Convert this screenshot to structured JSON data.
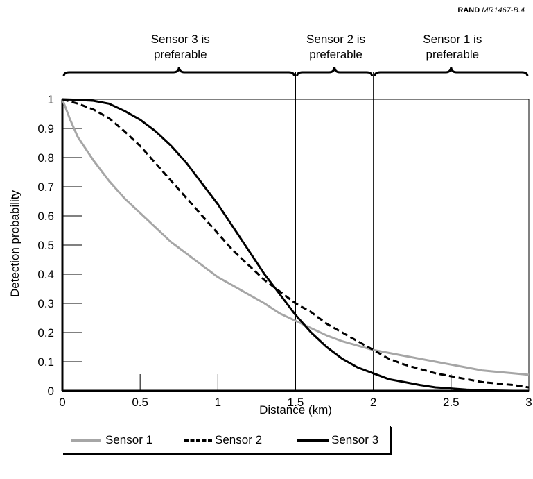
{
  "source": {
    "org": "RAND",
    "ref": "MR1467-B.4"
  },
  "chart_data": {
    "type": "line",
    "xlabel": "Distance (km)",
    "ylabel": "Detection probability",
    "xlim": [
      0,
      3
    ],
    "ylim": [
      0,
      1
    ],
    "xticks": [
      "0",
      "0.5",
      "1",
      "1.5",
      "2",
      "2.5",
      "3"
    ],
    "xtick_values": [
      0,
      0.5,
      1,
      1.5,
      2,
      2.5,
      3
    ],
    "yticks": [
      "0",
      "0.1",
      "0.2",
      "0.3",
      "0.4",
      "0.5",
      "0.6",
      "0.7",
      "0.8",
      "0.9",
      "1"
    ],
    "ytick_values": [
      0,
      0.1,
      0.2,
      0.3,
      0.4,
      0.5,
      0.6,
      0.7,
      0.8,
      0.9,
      1
    ],
    "grid": false,
    "legend_position": "bottom",
    "vertical_lines": [
      1.5,
      2.0
    ],
    "regions": [
      {
        "label_lines": [
          "Sensor 3 is",
          "preferable"
        ],
        "from": 0,
        "to": 1.5
      },
      {
        "label_lines": [
          "Sensor 2 is",
          "preferable"
        ],
        "from": 1.5,
        "to": 2.0
      },
      {
        "label_lines": [
          "Sensor 1 is",
          "preferable"
        ],
        "from": 2.0,
        "to": 3.0
      }
    ],
    "series": [
      {
        "name": "Sensor 1",
        "style": "solid",
        "color": "#a6a6a6",
        "x": [
          0,
          0.05,
          0.1,
          0.2,
          0.3,
          0.4,
          0.5,
          0.6,
          0.7,
          0.8,
          0.9,
          1.0,
          1.1,
          1.2,
          1.3,
          1.4,
          1.5,
          1.6,
          1.7,
          1.8,
          1.9,
          2.0,
          2.1,
          2.2,
          2.3,
          2.4,
          2.5,
          2.6,
          2.7,
          2.8,
          2.9,
          3.0
        ],
        "y": [
          1.0,
          0.93,
          0.87,
          0.79,
          0.72,
          0.66,
          0.61,
          0.56,
          0.51,
          0.47,
          0.43,
          0.39,
          0.36,
          0.33,
          0.3,
          0.265,
          0.24,
          0.215,
          0.19,
          0.17,
          0.155,
          0.14,
          0.13,
          0.12,
          0.11,
          0.1,
          0.09,
          0.08,
          0.07,
          0.065,
          0.06,
          0.055
        ]
      },
      {
        "name": "Sensor 2",
        "style": "dashed",
        "color": "#000000",
        "x": [
          0,
          0.1,
          0.2,
          0.3,
          0.4,
          0.5,
          0.6,
          0.7,
          0.8,
          0.9,
          1.0,
          1.1,
          1.2,
          1.3,
          1.4,
          1.5,
          1.6,
          1.7,
          1.8,
          1.9,
          2.0,
          2.1,
          2.2,
          2.3,
          2.4,
          2.5,
          2.6,
          2.7,
          2.8,
          2.9,
          3.0
        ],
        "y": [
          1.0,
          0.985,
          0.965,
          0.935,
          0.89,
          0.84,
          0.78,
          0.72,
          0.66,
          0.6,
          0.54,
          0.48,
          0.43,
          0.38,
          0.34,
          0.3,
          0.27,
          0.23,
          0.2,
          0.17,
          0.14,
          0.11,
          0.09,
          0.075,
          0.06,
          0.05,
          0.04,
          0.03,
          0.025,
          0.02,
          0.012
        ]
      },
      {
        "name": "Sensor 3",
        "style": "solid",
        "color": "#000000",
        "x": [
          0,
          0.1,
          0.2,
          0.3,
          0.4,
          0.5,
          0.6,
          0.7,
          0.8,
          0.9,
          1.0,
          1.1,
          1.2,
          1.3,
          1.4,
          1.5,
          1.6,
          1.7,
          1.8,
          1.9,
          2.0,
          2.1,
          2.2,
          2.3,
          2.4,
          2.5,
          2.6,
          2.7,
          2.8,
          2.9,
          3.0
        ],
        "y": [
          1.0,
          0.998,
          0.995,
          0.985,
          0.96,
          0.93,
          0.89,
          0.84,
          0.78,
          0.71,
          0.64,
          0.56,
          0.48,
          0.4,
          0.33,
          0.26,
          0.2,
          0.15,
          0.11,
          0.08,
          0.06,
          0.04,
          0.03,
          0.02,
          0.012,
          0.008,
          0.004,
          0.002,
          0.001,
          0.0,
          0.0
        ]
      }
    ]
  }
}
